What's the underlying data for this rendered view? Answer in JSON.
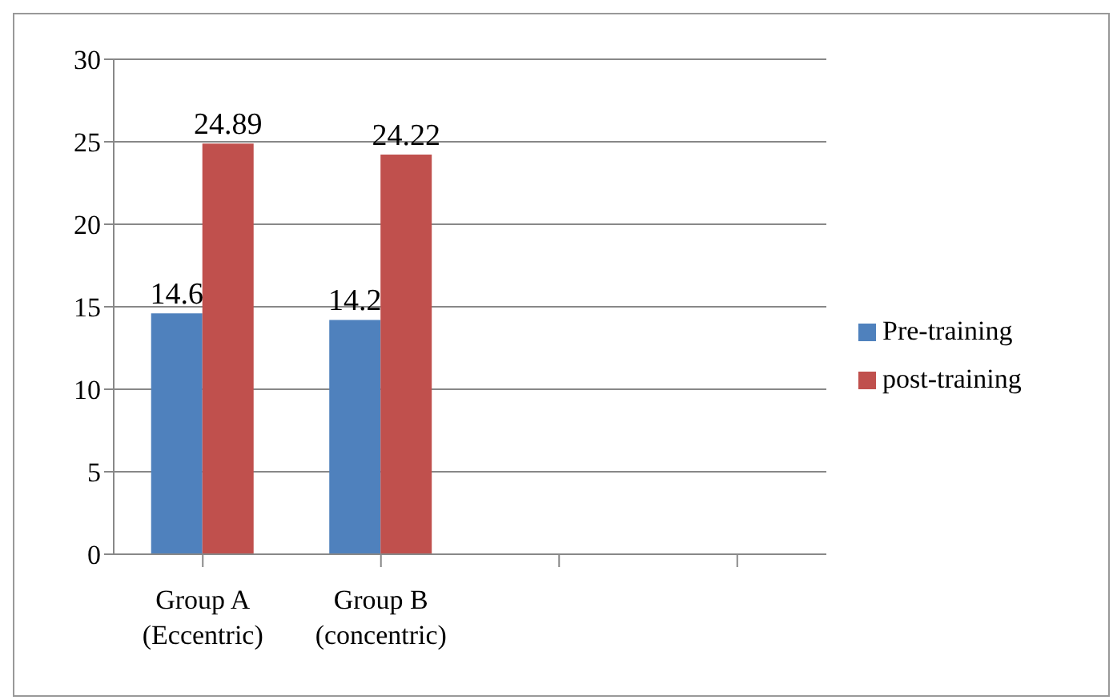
{
  "chart_data": {
    "type": "bar",
    "categories": [
      "Group A (Eccentric)",
      "Group B (concentric)",
      null,
      null
    ],
    "series": [
      {
        "name": "Pre-training",
        "color": "#4f81bd",
        "values": [
          14.6,
          14.2,
          null,
          null
        ]
      },
      {
        "name": "post-training",
        "color": "#c0504d",
        "values": [
          24.89,
          24.22,
          null,
          null
        ]
      }
    ],
    "ylim": [
      0,
      30
    ],
    "yticks": [
      0,
      5,
      10,
      15,
      20,
      25,
      30
    ],
    "grid": "y",
    "legend": "right",
    "data_labels": true
  }
}
